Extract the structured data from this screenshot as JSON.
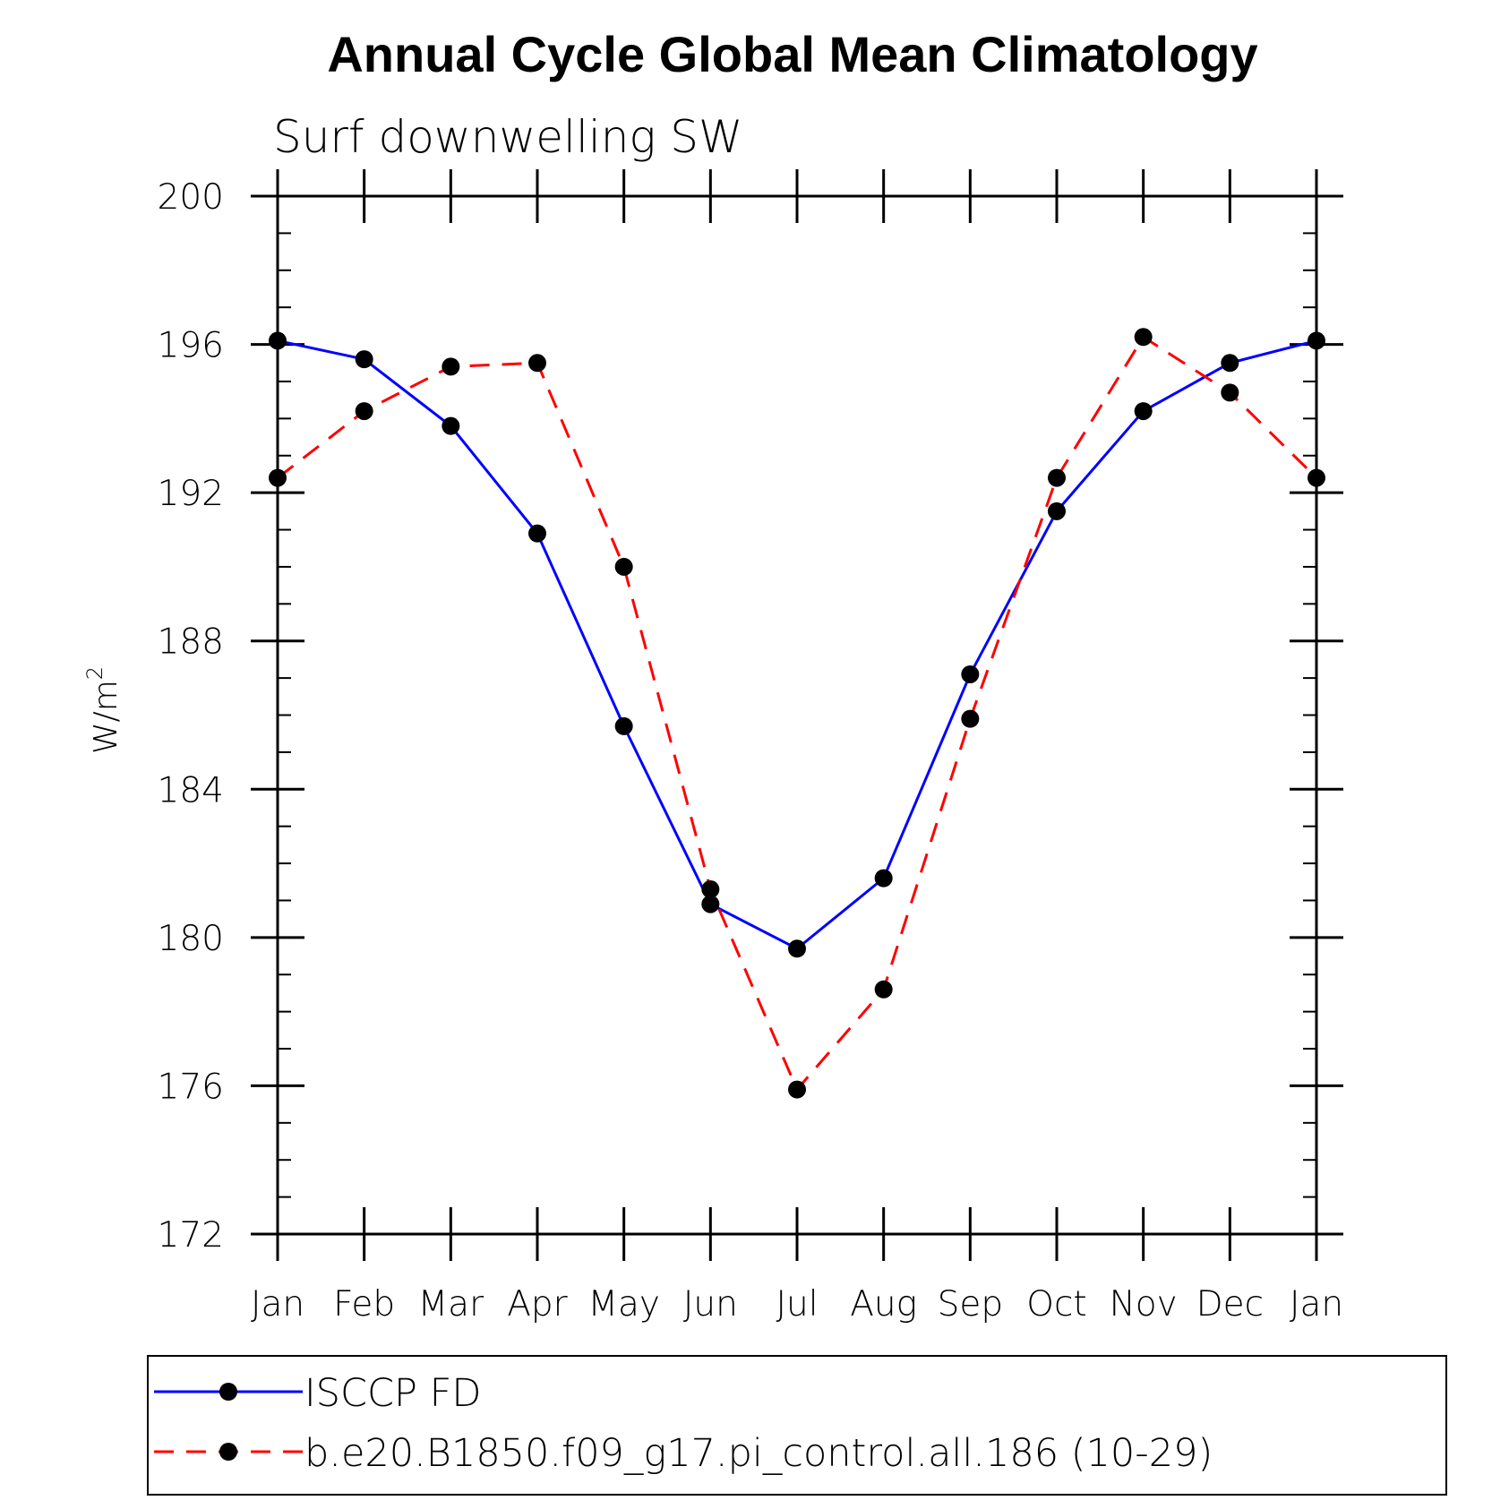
{
  "chart_data": {
    "type": "line",
    "title": "Annual Cycle Global Mean Climatology",
    "subtitle": "Surf downwelling SW",
    "xlabel": "",
    "ylabel_base": "W/m",
    "ylabel_sup": "2",
    "categories": [
      "Jan",
      "Feb",
      "Mar",
      "Apr",
      "May",
      "Jun",
      "Jul",
      "Aug",
      "Sep",
      "Oct",
      "Nov",
      "Dec",
      "Jan"
    ],
    "ylim": [
      172,
      200
    ],
    "yticks": [
      172,
      176,
      180,
      184,
      188,
      192,
      196,
      200
    ],
    "grid": false,
    "legend_position": "bottom",
    "series": [
      {
        "name": "ISCCP FD",
        "color": "#0000ff",
        "dash": "solid",
        "marker": "filled-circle",
        "values": [
          196.1,
          195.6,
          193.8,
          190.9,
          185.7,
          180.9,
          179.7,
          181.6,
          187.1,
          191.5,
          194.2,
          195.5,
          196.1
        ]
      },
      {
        "name": "b.e20.B1850.f09_g17.pi_control.all.186 (10-29)",
        "color": "#ff0000",
        "dash": "dashed",
        "marker": "filled-circle",
        "values": [
          192.4,
          194.2,
          195.4,
          195.5,
          190.0,
          181.3,
          175.9,
          178.6,
          185.9,
          192.4,
          196.2,
          194.7,
          192.4
        ]
      }
    ]
  }
}
